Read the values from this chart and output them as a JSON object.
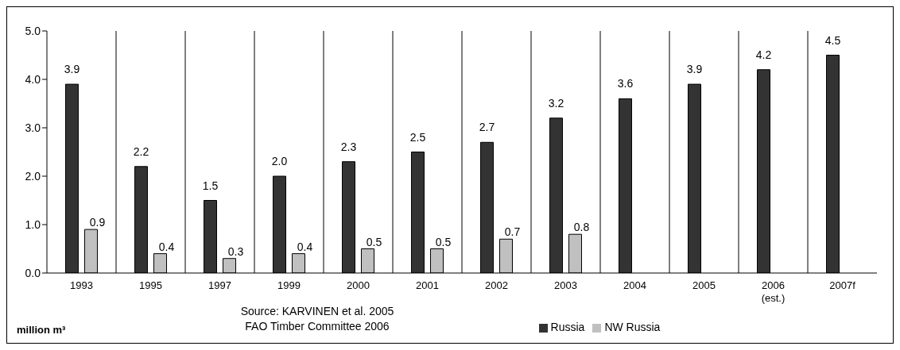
{
  "chart_data": {
    "type": "bar",
    "categories": [
      "1993",
      "1995",
      "1997",
      "1999",
      "2000",
      "2001",
      "2002",
      "2003",
      "2004",
      "2005",
      "2006 (est.)",
      "2007f"
    ],
    "series": [
      {
        "name": "Russia",
        "color": "#333333",
        "values": [
          3.9,
          2.2,
          1.5,
          2.0,
          2.3,
          2.5,
          2.7,
          3.2,
          3.6,
          3.9,
          4.2,
          4.5
        ],
        "value_labels": [
          "3.9",
          "2.2",
          "1.5",
          "2.0",
          "2.3",
          "2.5",
          "2.7",
          "3.2",
          "3.6",
          "3.9",
          "4.2",
          "4.5"
        ]
      },
      {
        "name": "NW Russia",
        "color": "#c0c0c0",
        "values": [
          0.9,
          0.4,
          0.3,
          0.4,
          0.5,
          0.5,
          0.7,
          0.8,
          null,
          null,
          null,
          null
        ],
        "value_labels": [
          "0.9",
          "0.4",
          "0.3",
          "0.4",
          "0.5",
          "0.5",
          "0.7",
          "0.8",
          null,
          null,
          null,
          null
        ]
      }
    ],
    "ylim": [
      0,
      5
    ],
    "yticks": [
      {
        "value": 0,
        "label": "0.0"
      },
      {
        "value": 1,
        "label": "1.0"
      },
      {
        "value": 2,
        "label": "2.0"
      },
      {
        "value": 3,
        "label": "3.0"
      },
      {
        "value": 4,
        "label": "4.0"
      },
      {
        "value": 5,
        "label": "5.0"
      }
    ],
    "grid": "x",
    "legend": "bottom",
    "annotations": [
      "million m³",
      "Source: KARVINEN et al. 2005",
      "FAO Timber Committee 2006"
    ]
  }
}
